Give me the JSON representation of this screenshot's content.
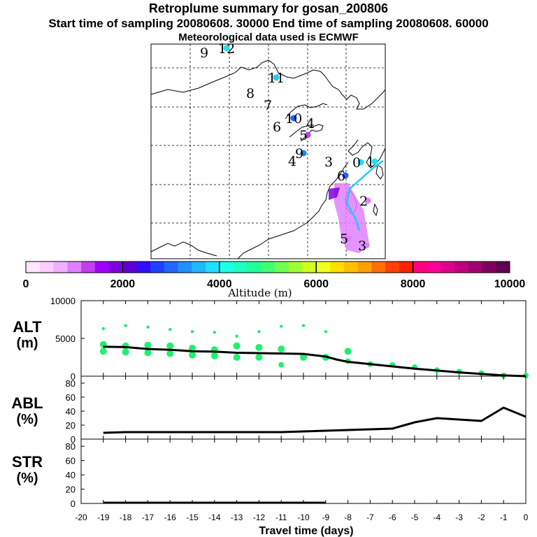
{
  "header": {
    "title": "Retroplume summary for gosan_200806",
    "subtitle": "Start time of sampling 20080608. 30000     End time of sampling 20080608. 60000",
    "met": "Meteorological data used is ECMWF"
  },
  "colorbar": {
    "tick_labels": [
      "0",
      "2000",
      "4000",
      "6000",
      "8000",
      "10000"
    ],
    "label": "Altitude (m)",
    "colors": [
      "#ffe6ff",
      "#ffccff",
      "#f0b0ff",
      "#e080ff",
      "#c040f0",
      "#a000ff",
      "#8000e0",
      "#6000d0",
      "#3010ff",
      "#2040ff",
      "#2068ff",
      "#2090ff",
      "#20b8ff",
      "#20e0ff",
      "#20ffe8",
      "#20ffc0",
      "#20ff98",
      "#40ff70",
      "#70ff50",
      "#a0ff30",
      "#d0ff20",
      "#f0ff20",
      "#ffe000",
      "#ffc000",
      "#ffa000",
      "#ff7000",
      "#ff4000",
      "#ff2000",
      "#ff0080",
      "#ff0099",
      "#e00090",
      "#c00080",
      "#a00070",
      "#800060",
      "#600050"
    ]
  },
  "side_labels": {
    "alt_a": "ALT",
    "alt_b": "(m)",
    "abl_a": "ABL",
    "abl_b": "(%)",
    "str_a": "STR",
    "str_b": "(%)"
  },
  "x_axis": {
    "title": "Travel time (days)",
    "ticks": [
      "-20",
      "-19",
      "-18",
      "-17",
      "-16",
      "-15",
      "-14",
      "-13",
      "-12",
      "-11",
      "-10",
      "-9",
      "-8",
      "-7",
      "-6",
      "-5",
      "-4",
      "-3",
      "-2",
      "-1",
      "0"
    ]
  },
  "map": {
    "markers": [
      {
        "label": "9",
        "color": "#e0e020"
      },
      {
        "label": "12",
        "color": "#20e0ff"
      },
      {
        "label": "11",
        "color": "#20c8ff"
      },
      {
        "label": "8",
        "color": "#40ff70"
      },
      {
        "label": "7",
        "color": "#2040ff"
      },
      {
        "label": "10",
        "color": "#2060ff"
      },
      {
        "label": "6",
        "color": "#20a0ff"
      },
      {
        "label": "4",
        "color": "#c040f0"
      },
      {
        "label": "5",
        "color": "#c040f0"
      },
      {
        "label": "9",
        "color": "#2080ff"
      },
      {
        "label": "4",
        "color": "#e080ff"
      },
      {
        "label": "3",
        "color": "#e080ff"
      },
      {
        "label": "0",
        "color": "#20e0ff"
      },
      {
        "label": "1",
        "color": "#20e0ff"
      },
      {
        "label": "6",
        "color": "#2060ff"
      },
      {
        "label": "2",
        "color": "#e080ff"
      },
      {
        "label": "5",
        "color": "#e080ff"
      },
      {
        "label": "3",
        "color": "#e080ff"
      }
    ]
  },
  "chart_data": [
    {
      "type": "line",
      "name": "ALT",
      "ylabel": "ALT (m)",
      "ylim": [
        0,
        10000
      ],
      "yticks": [
        "0",
        "5000",
        "10000"
      ],
      "x": [
        -19,
        -18,
        -17,
        -16,
        -15,
        -14,
        -13,
        -12,
        -11,
        -10,
        -9,
        -8.5,
        -8,
        -7,
        -6,
        -5,
        -4,
        -3,
        -2,
        -1,
        0
      ],
      "y": [
        3900,
        3850,
        3600,
        3500,
        3300,
        3250,
        3100,
        3050,
        3000,
        2950,
        2600,
        2200,
        1900,
        1600,
        1300,
        1000,
        750,
        500,
        300,
        100,
        0
      ],
      "scatter": {
        "x": [
          -19,
          -19,
          -19,
          -18,
          -18,
          -18,
          -17,
          -17,
          -17,
          -16,
          -16,
          -16,
          -15,
          -15,
          -15,
          -14,
          -14,
          -14,
          -13,
          -13,
          -13,
          -12,
          -12,
          -12,
          -11,
          -11,
          -11,
          -10,
          -10,
          -9,
          -9,
          -8,
          -8,
          -7,
          -6,
          -5,
          -4,
          -3,
          -2,
          -1,
          0
        ],
        "y": [
          6300,
          4200,
          3300,
          6700,
          4000,
          3200,
          6500,
          4100,
          3100,
          6200,
          4000,
          3000,
          5900,
          3700,
          2800,
          5800,
          3500,
          2700,
          5300,
          4000,
          2500,
          5900,
          3800,
          2500,
          6600,
          3600,
          1500,
          6700,
          2500,
          5900,
          2500,
          3300,
          2000,
          1600,
          1500,
          1200,
          800,
          600,
          400,
          100,
          100
        ],
        "color": "#20f070"
      }
    },
    {
      "type": "line",
      "name": "ABL",
      "ylabel": "ABL (%)",
      "ylim": [
        0,
        90
      ],
      "yticks": [
        "0",
        "20",
        "40",
        "60",
        "80"
      ],
      "x": [
        -19,
        -18,
        -17,
        -16,
        -15,
        -14,
        -13,
        -12,
        -11,
        -10,
        -9,
        -8,
        -7,
        -6,
        -5,
        -4,
        -3,
        -2,
        -1,
        0
      ],
      "y": [
        9,
        10,
        10,
        10,
        10,
        10,
        10,
        10,
        10,
        11,
        12,
        13,
        14,
        15,
        24,
        30,
        28,
        26,
        45,
        32
      ]
    },
    {
      "type": "line",
      "name": "STR",
      "ylabel": "STR (%)",
      "ylim": [
        0,
        90
      ],
      "yticks": [
        "0",
        "20",
        "40",
        "60",
        "80"
      ],
      "x": [
        -19,
        -18,
        -17,
        -16,
        -15,
        -14,
        -13,
        -12,
        -11,
        -10,
        -9
      ],
      "y": [
        1,
        1,
        1,
        1,
        1,
        1,
        1,
        1,
        1,
        1,
        1
      ]
    }
  ]
}
